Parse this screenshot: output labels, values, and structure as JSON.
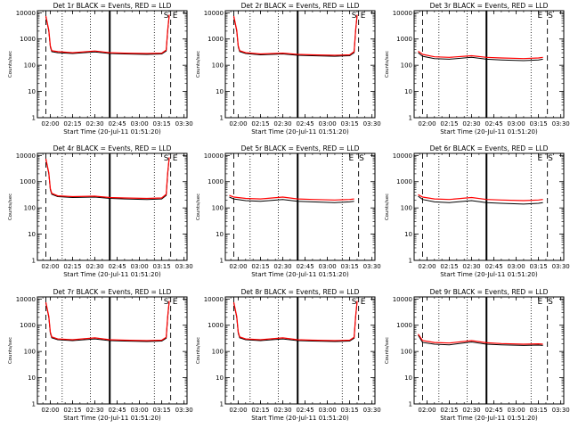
{
  "figure": {
    "ylabel": "Counts/sec",
    "xlabel": "Start Time (20-Jul-11 01:51:20)",
    "x_ticks": [
      "02:00",
      "02:15",
      "02:30",
      "02:45",
      "03:00",
      "03:15",
      "03:30"
    ],
    "y_ticks": [
      "1",
      "10",
      "100",
      "1000",
      "10000"
    ],
    "colors": {
      "events": "#000000",
      "lld": "#ff0000"
    },
    "letters": [
      "S",
      "E"
    ]
  },
  "chart_data": [
    {
      "type": "line",
      "title": "Det 1r BLACK = Events, RED = LLD",
      "x_range": [
        "01:51:20",
        "03:32:00"
      ],
      "ylim": [
        1,
        12000
      ],
      "yscale": "log",
      "flare_time": "02:40",
      "dotted_times": [
        "02:08",
        "02:27",
        "03:10"
      ],
      "dashed_times": [
        "01:57",
        "03:21"
      ],
      "y_label_values": [
        1,
        10,
        100,
        1000,
        10000
      ],
      "series": [
        {
          "x": [
            "01:57",
            "01:59",
            "02:00",
            "02:01",
            "02:05",
            "02:15",
            "02:30",
            "02:40",
            "02:50",
            "03:05",
            "03:15",
            "03:18",
            "03:19",
            "03:20"
          ],
          "values": [
            7000,
            2000,
            500,
            330,
            300,
            280,
            320,
            280,
            270,
            260,
            270,
            350,
            2000,
            8000
          ]
        },
        {
          "x": [
            "01:57",
            "01:59",
            "02:00",
            "02:01",
            "02:05",
            "02:15",
            "02:30",
            "02:40",
            "02:50",
            "03:05",
            "03:15",
            "03:18",
            "03:19",
            "03:20"
          ],
          "values": [
            7500,
            2200,
            550,
            360,
            330,
            300,
            350,
            300,
            290,
            280,
            290,
            380,
            2200,
            8500
          ]
        }
      ],
      "markers": [
        {
          "label": "S",
          "time": "03:18"
        },
        {
          "label": "E",
          "time": "03:24"
        }
      ]
    },
    {
      "type": "line",
      "title": "Det 2r BLACK = Events, RED = LLD",
      "x_range": [
        "01:51:20",
        "03:32:00"
      ],
      "ylim": [
        1,
        12000
      ],
      "yscale": "log",
      "flare_time": "02:40",
      "dotted_times": [
        "02:08",
        "02:27",
        "03:10"
      ],
      "dashed_times": [
        "01:57",
        "03:21"
      ],
      "y_label_values": [
        1,
        10,
        100,
        1000,
        10000
      ],
      "series": [
        {
          "x": [
            "01:57",
            "01:59",
            "02:00",
            "02:01",
            "02:05",
            "02:15",
            "02:30",
            "02:40",
            "02:50",
            "03:05",
            "03:15",
            "03:18",
            "03:19",
            "03:20"
          ],
          "values": [
            7000,
            2000,
            500,
            330,
            280,
            250,
            270,
            240,
            230,
            220,
            230,
            300,
            2000,
            8000
          ]
        },
        {
          "x": [
            "01:57",
            "01:59",
            "02:00",
            "02:01",
            "02:05",
            "02:15",
            "02:30",
            "02:40",
            "02:50",
            "03:05",
            "03:15",
            "03:18",
            "03:19",
            "03:20"
          ],
          "values": [
            7500,
            2200,
            550,
            360,
            300,
            270,
            290,
            260,
            250,
            240,
            250,
            330,
            2200,
            8500
          ]
        }
      ],
      "markers": [
        {
          "label": "S",
          "time": "03:18"
        },
        {
          "label": "E",
          "time": "03:24"
        }
      ]
    },
    {
      "type": "line",
      "title": "Det 3r BLACK = Events, RED = LLD",
      "x_range": [
        "01:51:20",
        "03:32:00"
      ],
      "ylim": [
        1,
        12000
      ],
      "yscale": "log",
      "flare_time": "02:40",
      "dotted_times": [
        "02:08",
        "02:27",
        "03:10"
      ],
      "dashed_times": [
        "01:57",
        "03:21"
      ],
      "y_label_values": [
        1,
        10,
        100,
        1000,
        10000
      ],
      "series": [
        {
          "x": [
            "01:54",
            "01:57",
            "02:05",
            "02:15",
            "02:30",
            "02:40",
            "02:50",
            "03:05",
            "03:15",
            "03:18"
          ],
          "values": [
            300,
            220,
            180,
            170,
            200,
            170,
            160,
            150,
            160,
            170
          ]
        },
        {
          "x": [
            "01:54",
            "01:57",
            "02:05",
            "02:15",
            "02:30",
            "02:40",
            "02:50",
            "03:05",
            "03:15",
            "03:18"
          ],
          "values": [
            340,
            260,
            210,
            200,
            230,
            200,
            190,
            180,
            190,
            200
          ]
        }
      ],
      "markers": [
        {
          "label": "E",
          "time": "03:16"
        },
        {
          "label": "S",
          "time": "03:23"
        }
      ]
    },
    {
      "type": "line",
      "title": "Det 4r BLACK = Events, RED = LLD",
      "x_range": [
        "01:51:20",
        "03:32:00"
      ],
      "ylim": [
        1,
        12000
      ],
      "yscale": "log",
      "flare_time": "02:40",
      "dotted_times": [
        "02:08",
        "02:27",
        "03:10"
      ],
      "dashed_times": [
        "01:57",
        "03:21"
      ],
      "y_label_values": [
        1,
        10,
        100,
        1000,
        10000
      ],
      "series": [
        {
          "x": [
            "01:57",
            "01:59",
            "02:00",
            "02:01",
            "02:05",
            "02:15",
            "02:30",
            "02:40",
            "02:50",
            "03:05",
            "03:15",
            "03:18",
            "03:19",
            "03:20"
          ],
          "values": [
            7000,
            2000,
            500,
            330,
            270,
            250,
            260,
            230,
            220,
            210,
            220,
            300,
            2000,
            8000
          ]
        },
        {
          "x": [
            "01:57",
            "01:59",
            "02:00",
            "02:01",
            "02:05",
            "02:15",
            "02:30",
            "02:40",
            "02:50",
            "03:05",
            "03:15",
            "03:18",
            "03:19",
            "03:20"
          ],
          "values": [
            7500,
            2200,
            550,
            360,
            290,
            270,
            280,
            250,
            240,
            230,
            240,
            330,
            2200,
            8500
          ]
        }
      ],
      "markers": [
        {
          "label": "S",
          "time": "03:18"
        },
        {
          "label": "E",
          "time": "03:24"
        }
      ]
    },
    {
      "type": "line",
      "title": "Det 5r BLACK = Events, RED = LLD",
      "x_range": [
        "01:51:20",
        "03:32:00"
      ],
      "ylim": [
        1,
        12000
      ],
      "yscale": "log",
      "flare_time": "02:40",
      "dotted_times": [
        "02:08",
        "02:27",
        "03:10"
      ],
      "dashed_times": [
        "01:57",
        "03:21"
      ],
      "y_label_values": [
        1,
        10,
        100,
        1000,
        10000
      ],
      "series": [
        {
          "x": [
            "01:54",
            "01:57",
            "02:05",
            "02:15",
            "02:30",
            "02:40",
            "02:50",
            "03:05",
            "03:15",
            "03:18"
          ],
          "values": [
            260,
            220,
            190,
            180,
            210,
            180,
            170,
            160,
            170,
            180
          ]
        },
        {
          "x": [
            "01:54",
            "01:57",
            "02:05",
            "02:15",
            "02:30",
            "02:40",
            "02:50",
            "03:05",
            "03:15",
            "03:18"
          ],
          "values": [
            300,
            260,
            230,
            220,
            260,
            220,
            210,
            200,
            210,
            220
          ]
        }
      ],
      "markers": [
        {
          "label": "E",
          "time": "03:16"
        },
        {
          "label": "S",
          "time": "03:23"
        }
      ]
    },
    {
      "type": "line",
      "title": "Det 6r BLACK = Events, RED = LLD",
      "x_range": [
        "01:51:20",
        "03:32:00"
      ],
      "ylim": [
        1,
        12000
      ],
      "yscale": "log",
      "flare_time": "02:40",
      "dotted_times": [
        "02:08",
        "02:27",
        "03:10"
      ],
      "dashed_times": [
        "01:57",
        "03:21"
      ],
      "y_label_values": [
        1,
        10,
        100,
        1000,
        10000
      ],
      "series": [
        {
          "x": [
            "01:54",
            "01:57",
            "02:05",
            "02:15",
            "02:30",
            "02:40",
            "02:50",
            "03:05",
            "03:15",
            "03:18"
          ],
          "values": [
            280,
            210,
            170,
            160,
            190,
            160,
            150,
            140,
            150,
            160
          ]
        },
        {
          "x": [
            "01:54",
            "01:57",
            "02:05",
            "02:15",
            "02:30",
            "02:40",
            "02:50",
            "03:05",
            "03:15",
            "03:18"
          ],
          "values": [
            320,
            260,
            220,
            210,
            250,
            210,
            200,
            190,
            200,
            210
          ]
        }
      ],
      "markers": [
        {
          "label": "E",
          "time": "03:16"
        },
        {
          "label": "S",
          "time": "03:23"
        }
      ]
    },
    {
      "type": "line",
      "title": "Det 7r BLACK = Events, RED = LLD",
      "x_range": [
        "01:51:20",
        "03:32:00"
      ],
      "ylim": [
        1,
        12000
      ],
      "yscale": "log",
      "flare_time": "02:40",
      "dotted_times": [
        "02:08",
        "02:27",
        "03:10"
      ],
      "dashed_times": [
        "01:57",
        "03:21"
      ],
      "y_label_values": [
        1,
        10,
        100,
        1000,
        10000
      ],
      "series": [
        {
          "x": [
            "01:57",
            "01:59",
            "02:00",
            "02:01",
            "02:05",
            "02:15",
            "02:30",
            "02:40",
            "02:50",
            "03:05",
            "03:15",
            "03:18",
            "03:19",
            "03:20"
          ],
          "values": [
            7000,
            2000,
            500,
            330,
            280,
            260,
            300,
            260,
            250,
            240,
            250,
            320,
            2000,
            8000
          ]
        },
        {
          "x": [
            "01:57",
            "01:59",
            "02:00",
            "02:01",
            "02:05",
            "02:15",
            "02:30",
            "02:40",
            "02:50",
            "03:05",
            "03:15",
            "03:18",
            "03:19",
            "03:20"
          ],
          "values": [
            7500,
            2200,
            550,
            360,
            300,
            280,
            330,
            280,
            270,
            260,
            270,
            350,
            2200,
            8500
          ]
        }
      ],
      "markers": [
        {
          "label": "S",
          "time": "03:18"
        },
        {
          "label": "E",
          "time": "03:24"
        }
      ]
    },
    {
      "type": "line",
      "title": "Det 8r BLACK = Events, RED = LLD",
      "x_range": [
        "01:51:20",
        "03:32:00"
      ],
      "ylim": [
        1,
        12000
      ],
      "yscale": "log",
      "flare_time": "02:40",
      "dotted_times": [
        "02:08",
        "02:27",
        "03:10"
      ],
      "dashed_times": [
        "01:57",
        "03:21"
      ],
      "y_label_values": [
        1,
        10,
        100,
        1000,
        10000
      ],
      "series": [
        {
          "x": [
            "01:57",
            "01:59",
            "02:00",
            "02:01",
            "02:05",
            "02:15",
            "02:30",
            "02:40",
            "02:50",
            "03:05",
            "03:15",
            "03:18",
            "03:19",
            "03:20"
          ],
          "values": [
            7000,
            2000,
            500,
            330,
            280,
            260,
            300,
            260,
            250,
            240,
            250,
            320,
            2000,
            8000
          ]
        },
        {
          "x": [
            "01:57",
            "01:59",
            "02:00",
            "02:01",
            "02:05",
            "02:15",
            "02:30",
            "02:40",
            "02:50",
            "03:05",
            "03:15",
            "03:18",
            "03:19",
            "03:20"
          ],
          "values": [
            7500,
            2200,
            550,
            360,
            300,
            280,
            330,
            280,
            270,
            260,
            270,
            350,
            2200,
            8500
          ]
        }
      ],
      "markers": [
        {
          "label": "S",
          "time": "03:18"
        },
        {
          "label": "E",
          "time": "03:24"
        }
      ]
    },
    {
      "type": "line",
      "title": "Det 9r BLACK = Events, RED = LLD",
      "x_range": [
        "01:51:20",
        "03:32:00"
      ],
      "ylim": [
        1,
        12000
      ],
      "yscale": "log",
      "flare_time": "02:40",
      "dotted_times": [
        "02:08",
        "02:27",
        "03:10"
      ],
      "dashed_times": [
        "01:57",
        "03:21"
      ],
      "y_label_values": [
        1,
        10,
        100,
        1000,
        10000
      ],
      "series": [
        {
          "x": [
            "01:54",
            "01:57",
            "02:05",
            "02:15",
            "02:30",
            "02:40",
            "02:50",
            "03:05",
            "03:15",
            "03:18"
          ],
          "values": [
            420,
            220,
            190,
            180,
            230,
            190,
            180,
            170,
            175,
            170
          ]
        },
        {
          "x": [
            "01:54",
            "01:57",
            "02:05",
            "02:15",
            "02:30",
            "02:40",
            "02:50",
            "03:05",
            "03:15",
            "03:18"
          ],
          "values": [
            460,
            260,
            220,
            210,
            260,
            215,
            200,
            190,
            195,
            190
          ]
        }
      ],
      "markers": [
        {
          "label": "E",
          "time": "03:16"
        },
        {
          "label": "S",
          "time": "03:23"
        }
      ]
    }
  ]
}
